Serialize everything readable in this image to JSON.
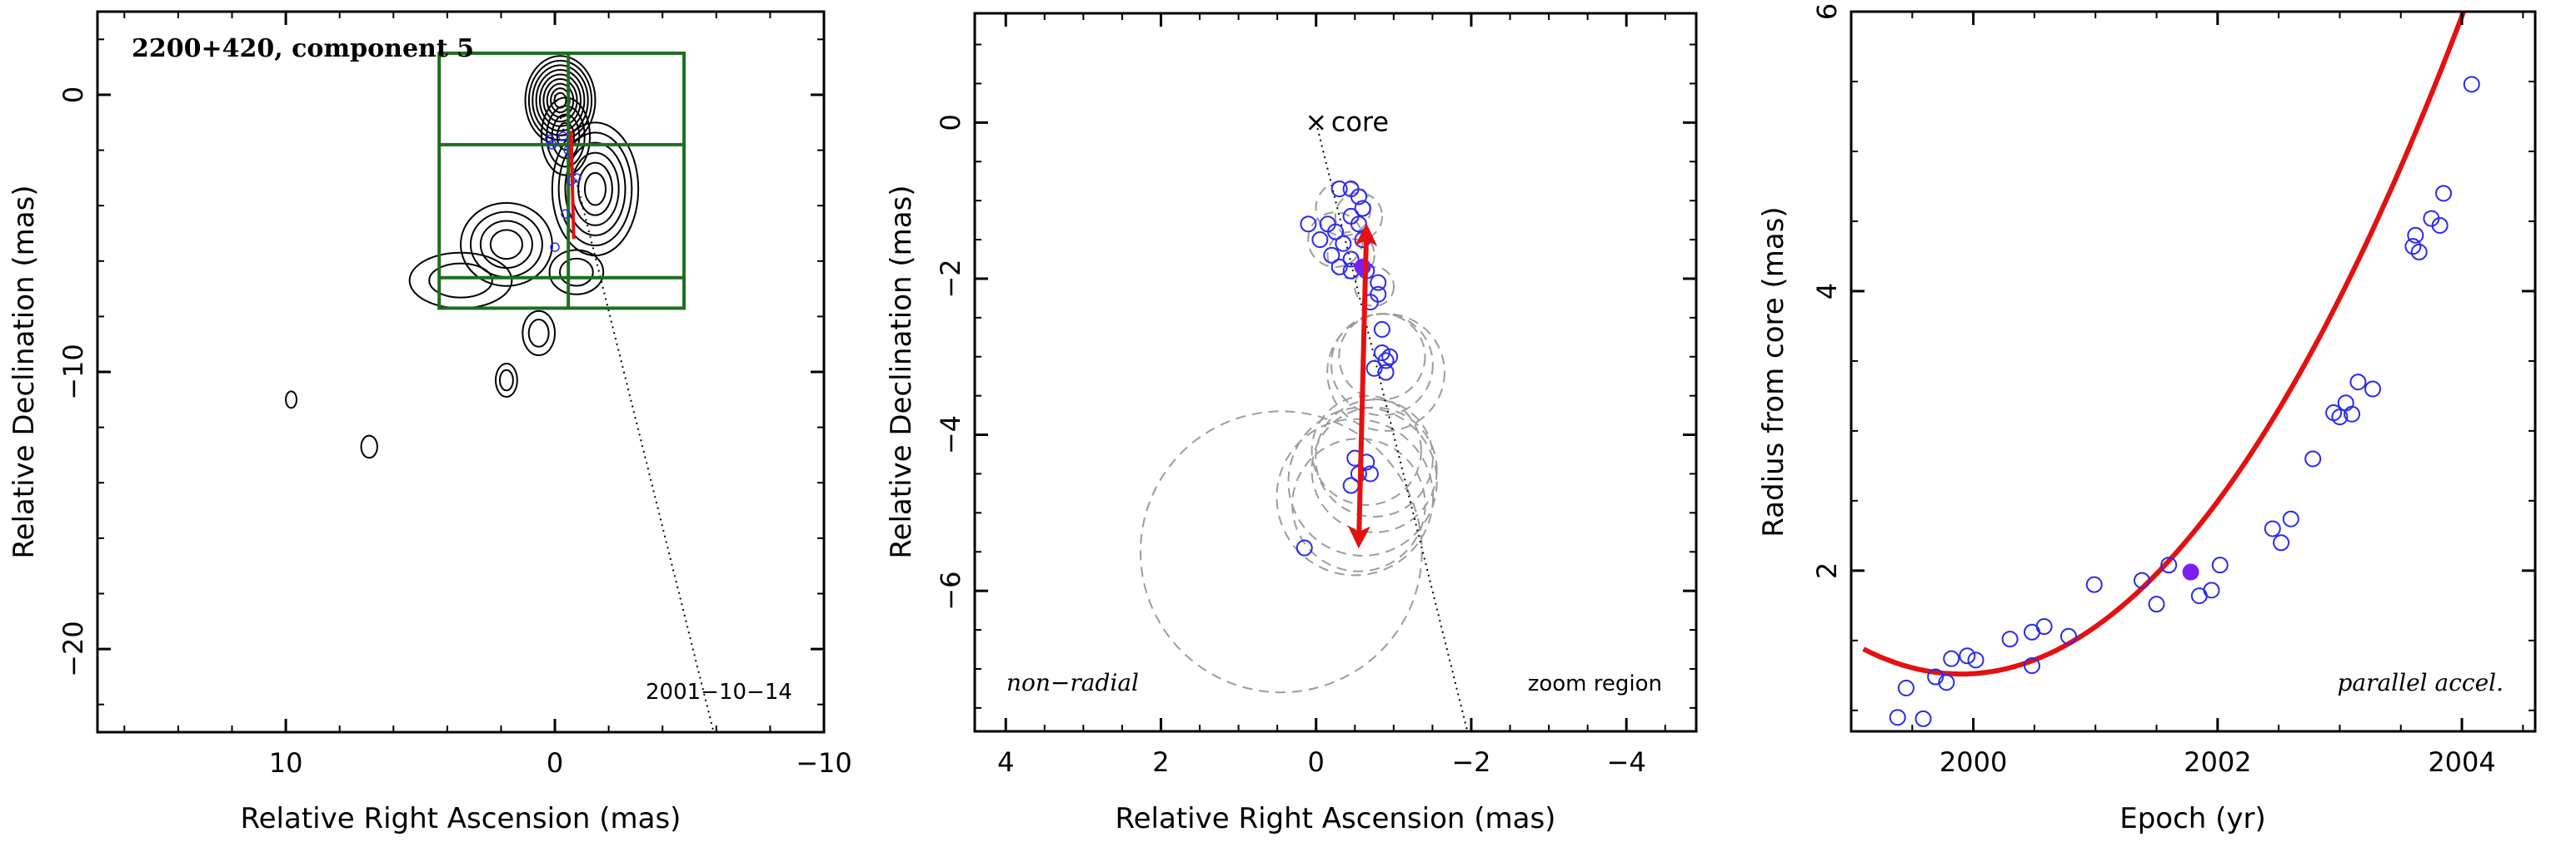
{
  "chart_data": [
    {
      "type": "scatter",
      "title": "2200+420, component 5",
      "xlabel": "Relative Right Ascension (mas)",
      "ylabel": "Relative Declination (mas)",
      "xlim": [
        17,
        -10
      ],
      "ylim": [
        -23,
        3
      ],
      "x_ticks": [
        10,
        0,
        -10
      ],
      "y_ticks": [
        0,
        -10,
        -20
      ],
      "tick_labels_x": [
        "10",
        "0",
        "−10"
      ],
      "tick_labels_y": [
        "0",
        "−10",
        "−20"
      ],
      "annotation": "2001−10−14",
      "zoom_box": {
        "x": [
          4.3,
          -4.8
        ],
        "y": [
          1.5,
          -7.7
        ],
        "dividers_y": [
          -1.8,
          -6.6
        ],
        "divider_x": -0.5
      },
      "component_points": [
        {
          "x": 0.2,
          "y": -1.6
        },
        {
          "x": 0.1,
          "y": -1.8
        },
        {
          "x": -0.3,
          "y": -1.5
        },
        {
          "x": -0.5,
          "y": -2.0
        },
        {
          "x": -0.6,
          "y": -3.1
        },
        {
          "x": -0.8,
          "y": -3.0
        },
        {
          "x": -0.4,
          "y": -4.3
        },
        {
          "x": 0.0,
          "y": -5.5
        }
      ],
      "velocity_arrow": {
        "from": [
          -0.6,
          -1.3
        ],
        "to": [
          -0.7,
          -5.2
        ]
      },
      "core_direction": {
        "from": [
          0.0,
          0.0
        ],
        "to": [
          -5.9,
          -23.0
        ]
      },
      "contour_clumps": [
        {
          "x": -0.2,
          "y": -0.2,
          "rx": 1.3,
          "ry": 1.6,
          "n": 9
        },
        {
          "x": -0.4,
          "y": -1.5,
          "rx": 0.9,
          "ry": 1.4,
          "n": 4
        },
        {
          "x": -1.5,
          "y": -3.4,
          "rx": 1.6,
          "ry": 2.4,
          "n": 6
        },
        {
          "x": 1.8,
          "y": -5.4,
          "rx": 1.7,
          "ry": 1.5,
          "n": 4
        },
        {
          "x": 3.5,
          "y": -6.7,
          "rx": 1.9,
          "ry": 1.0,
          "n": 2
        },
        {
          "x": -0.8,
          "y": -6.4,
          "rx": 1.0,
          "ry": 0.8,
          "n": 2
        },
        {
          "x": 0.6,
          "y": -8.6,
          "rx": 0.6,
          "ry": 0.8,
          "n": 2
        },
        {
          "x": 1.8,
          "y": -10.3,
          "rx": 0.4,
          "ry": 0.6,
          "n": 2
        },
        {
          "x": 6.9,
          "y": -12.7,
          "rx": 0.3,
          "ry": 0.4,
          "n": 1
        },
        {
          "x": 9.8,
          "y": -11.0,
          "rx": 0.2,
          "ry": 0.3,
          "n": 1
        }
      ]
    },
    {
      "type": "scatter",
      "xlabel": "Relative Right Ascension (mas)",
      "ylabel": "Relative Declination (mas)",
      "xlim": [
        4.4,
        -4.9
      ],
      "ylim": [
        -7.8,
        1.4
      ],
      "x_ticks": [
        4,
        2,
        0,
        -2,
        -4
      ],
      "y_ticks": [
        0,
        -2,
        -4,
        -6
      ],
      "tick_labels_x": [
        "4",
        "2",
        "0",
        "−2",
        "−4"
      ],
      "tick_labels_y": [
        "0",
        "−2",
        "−4",
        "−6"
      ],
      "core_label": "core",
      "core_marker": "×",
      "left_note": "non−radial",
      "right_note": "zoom region",
      "points": [
        {
          "x": -0.45,
          "y": -0.85
        },
        {
          "x": -0.55,
          "y": -0.95
        },
        {
          "x": -0.3,
          "y": -0.85
        },
        {
          "x": -0.6,
          "y": -1.1
        },
        {
          "x": -0.45,
          "y": -1.2
        },
        {
          "x": 0.1,
          "y": -1.3
        },
        {
          "x": -0.15,
          "y": -1.3
        },
        {
          "x": -0.25,
          "y": -1.4
        },
        {
          "x": -0.55,
          "y": -1.3
        },
        {
          "x": -0.05,
          "y": -1.5
        },
        {
          "x": -0.35,
          "y": -1.55
        },
        {
          "x": -0.6,
          "y": -1.5
        },
        {
          "x": -0.2,
          "y": -1.7
        },
        {
          "x": -0.45,
          "y": -1.75
        },
        {
          "x": -0.3,
          "y": -1.85
        },
        {
          "x": -0.45,
          "y": -1.9
        },
        {
          "x": -0.65,
          "y": -1.9
        },
        {
          "x": -0.8,
          "y": -2.05
        },
        {
          "x": -0.8,
          "y": -2.2
        },
        {
          "x": -0.7,
          "y": -2.3
        },
        {
          "x": -0.85,
          "y": -2.65
        },
        {
          "x": -0.85,
          "y": -2.95
        },
        {
          "x": -0.95,
          "y": -3.0
        },
        {
          "x": -0.9,
          "y": -3.2
        },
        {
          "x": -0.75,
          "y": -3.15
        },
        {
          "x": -0.9,
          "y": -3.05
        },
        {
          "x": -0.5,
          "y": -4.3
        },
        {
          "x": -0.65,
          "y": -4.35
        },
        {
          "x": -0.7,
          "y": -4.5
        },
        {
          "x": -0.55,
          "y": -4.5
        },
        {
          "x": -0.45,
          "y": -4.65
        },
        {
          "x": 0.15,
          "y": -5.45
        }
      ],
      "highlight_point": {
        "x": -0.6,
        "y": -1.85
      },
      "gaussian_circles": [
        {
          "x": -0.35,
          "y": -1.1,
          "r": 0.35
        },
        {
          "x": -0.55,
          "y": -1.2,
          "r": 0.3
        },
        {
          "x": -0.25,
          "y": -1.5,
          "r": 0.35
        },
        {
          "x": -0.45,
          "y": -1.7,
          "r": 0.3
        },
        {
          "x": -0.75,
          "y": -2.1,
          "r": 0.25
        },
        {
          "x": -0.85,
          "y": -3.1,
          "r": 0.65
        },
        {
          "x": -0.9,
          "y": -3.2,
          "r": 0.75
        },
        {
          "x": -0.85,
          "y": -3.0,
          "r": 0.55
        },
        {
          "x": -0.75,
          "y": -4.45,
          "r": 0.8
        },
        {
          "x": -0.6,
          "y": -4.6,
          "r": 0.95
        },
        {
          "x": -0.75,
          "y": -4.3,
          "r": 0.75
        },
        {
          "x": -0.55,
          "y": -4.9,
          "r": 0.85
        },
        {
          "x": -0.65,
          "y": -4.2,
          "r": 0.7
        },
        {
          "x": -0.5,
          "y": -4.8,
          "r": 1.0
        },
        {
          "x": 0.45,
          "y": -5.5,
          "r": 1.8
        }
      ],
      "velocity_arrow": {
        "from": [
          -0.65,
          -1.35
        ],
        "to": [
          -0.55,
          -5.4
        ]
      },
      "core_direction": {
        "from": [
          0.0,
          0.0
        ],
        "to": [
          -1.95,
          -7.8
        ]
      }
    },
    {
      "type": "scatter",
      "xlabel": "Epoch (yr)",
      "ylabel": "Radius from core (mas)",
      "xlim": [
        1999.0,
        2004.6
      ],
      "ylim": [
        0.85,
        6.0
      ],
      "x_ticks": [
        2000,
        2002,
        2004
      ],
      "y_ticks": [
        2,
        4,
        6
      ],
      "tick_labels_x": [
        "2000",
        "2002",
        "2004"
      ],
      "tick_labels_y": [
        "2",
        "4",
        "6"
      ],
      "note": "parallel accel.",
      "points": [
        {
          "x": 1999.38,
          "y": 0.95
        },
        {
          "x": 1999.45,
          "y": 1.16
        },
        {
          "x": 1999.59,
          "y": 0.94
        },
        {
          "x": 1999.69,
          "y": 1.24
        },
        {
          "x": 1999.78,
          "y": 1.2
        },
        {
          "x": 1999.82,
          "y": 1.37
        },
        {
          "x": 1999.95,
          "y": 1.39
        },
        {
          "x": 2000.02,
          "y": 1.36
        },
        {
          "x": 2000.3,
          "y": 1.51
        },
        {
          "x": 2000.48,
          "y": 1.32
        },
        {
          "x": 2000.48,
          "y": 1.56
        },
        {
          "x": 2000.58,
          "y": 1.6
        },
        {
          "x": 2000.78,
          "y": 1.53
        },
        {
          "x": 2000.99,
          "y": 1.9
        },
        {
          "x": 2001.38,
          "y": 1.93
        },
        {
          "x": 2001.5,
          "y": 1.76
        },
        {
          "x": 2001.6,
          "y": 2.04
        },
        {
          "x": 2001.85,
          "y": 1.82
        },
        {
          "x": 2001.95,
          "y": 1.86
        },
        {
          "x": 2002.02,
          "y": 2.04
        },
        {
          "x": 2002.45,
          "y": 2.3
        },
        {
          "x": 2002.52,
          "y": 2.2
        },
        {
          "x": 2002.6,
          "y": 2.37
        },
        {
          "x": 2002.78,
          "y": 2.8
        },
        {
          "x": 2002.95,
          "y": 3.13
        },
        {
          "x": 2003.0,
          "y": 3.1
        },
        {
          "x": 2003.05,
          "y": 3.2
        },
        {
          "x": 2003.1,
          "y": 3.12
        },
        {
          "x": 2003.15,
          "y": 3.35
        },
        {
          "x": 2003.27,
          "y": 3.3
        },
        {
          "x": 2003.6,
          "y": 4.32
        },
        {
          "x": 2003.62,
          "y": 4.4
        },
        {
          "x": 2003.65,
          "y": 4.28
        },
        {
          "x": 2003.75,
          "y": 4.52
        },
        {
          "x": 2003.82,
          "y": 4.47
        },
        {
          "x": 2003.85,
          "y": 4.7
        },
        {
          "x": 2004.08,
          "y": 5.48
        }
      ],
      "highlight_point": {
        "x": 2001.78,
        "y": 1.99
      },
      "fit_curve": {
        "type": "quadratic",
        "a": 0.28,
        "t0": 1999.9,
        "c": 1.26,
        "x_range": [
          1999.1,
          2004.35
        ]
      }
    }
  ],
  "colors": {
    "marker": "#2a2af0",
    "highlight": "#7a1ff0",
    "arrow": "#e41111",
    "box": "#1f6e1f",
    "circle": "#9c9c9c"
  }
}
